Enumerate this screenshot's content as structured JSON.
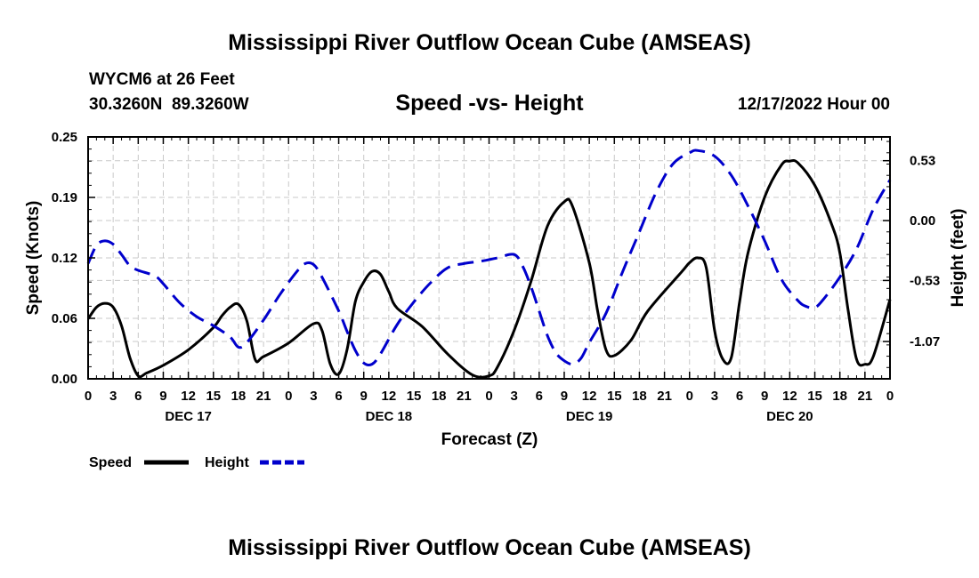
{
  "page": {
    "title": "Mississippi River Outflow Ocean Cube (AMSEAS)",
    "footer_title": "Mississippi River Outflow Ocean Cube (AMSEAS)"
  },
  "station": {
    "name": "WYCM6 at 26 Feet",
    "coords": "30.3260N  89.3260W",
    "timestamp": "12/17/2022 Hour 00"
  },
  "legend": {
    "speed_label": "Speed",
    "height_label": "Height"
  },
  "chart_data": {
    "type": "line",
    "title": "Speed -vs- Height",
    "xlabel": "Forecast (Z)",
    "ylabel": "Speed (Knots)",
    "y2label": "Height (feet)",
    "x_range": [
      0,
      96
    ],
    "ylim": [
      0,
      0.25
    ],
    "y2lim": [
      -1.4,
      0.74
    ],
    "y_ticks": [
      "0.00",
      "0.06",
      "0.12",
      "0.19",
      "0.25"
    ],
    "y_tick_values": [
      0,
      0.0625,
      0.125,
      0.1875,
      0.25
    ],
    "y2_ticks": [
      "-1.07",
      "-0.53",
      "0.00",
      "0.53"
    ],
    "y2_tick_values": [
      -1.07,
      -0.53,
      0.0,
      0.53
    ],
    "x_tick_labels": [
      "0",
      "3",
      "6",
      "9",
      "12",
      "15",
      "18",
      "21",
      "0",
      "3",
      "6",
      "9",
      "12",
      "15",
      "18",
      "21",
      "0",
      "3",
      "6",
      "9",
      "12",
      "15",
      "18",
      "21",
      "0",
      "3",
      "6",
      "9",
      "12",
      "15",
      "18",
      "21",
      "0"
    ],
    "day_labels": [
      {
        "label": "DEC 17",
        "hour": 12
      },
      {
        "label": "DEC 18",
        "hour": 36
      },
      {
        "label": "DEC 19",
        "hour": 60
      },
      {
        "label": "DEC 20",
        "hour": 84
      }
    ],
    "grid": true,
    "series": [
      {
        "name": "Speed",
        "axis": "left",
        "color": "#000000",
        "dashed": false,
        "points": [
          [
            0,
            0.062
          ],
          [
            1,
            0.074
          ],
          [
            2,
            0.078
          ],
          [
            3,
            0.074
          ],
          [
            4,
            0.055
          ],
          [
            5,
            0.022
          ],
          [
            6,
            0.003
          ],
          [
            7,
            0.006
          ],
          [
            9,
            0.014
          ],
          [
            12,
            0.03
          ],
          [
            15,
            0.053
          ],
          [
            16,
            0.065
          ],
          [
            17,
            0.074
          ],
          [
            18,
            0.077
          ],
          [
            19,
            0.06
          ],
          [
            20,
            0.02
          ],
          [
            21,
            0.023
          ],
          [
            24,
            0.037
          ],
          [
            27,
            0.057
          ],
          [
            28,
            0.05
          ],
          [
            29,
            0.015
          ],
          [
            30,
            0.005
          ],
          [
            31,
            0.03
          ],
          [
            32,
            0.08
          ],
          [
            33,
            0.1
          ],
          [
            34,
            0.111
          ],
          [
            35,
            0.108
          ],
          [
            36,
            0.09
          ],
          [
            37,
            0.073
          ],
          [
            40,
            0.054
          ],
          [
            43,
            0.026
          ],
          [
            46,
            0.004
          ],
          [
            48,
            0.003
          ],
          [
            49,
            0.012
          ],
          [
            51,
            0.05
          ],
          [
            53,
            0.1
          ],
          [
            55,
            0.158
          ],
          [
            57,
            0.183
          ],
          [
            58,
            0.178
          ],
          [
            60,
            0.12
          ],
          [
            61,
            0.07
          ],
          [
            62,
            0.03
          ],
          [
            63,
            0.024
          ],
          [
            65,
            0.04
          ],
          [
            67,
            0.07
          ],
          [
            71,
            0.11
          ],
          [
            72,
            0.12
          ],
          [
            73,
            0.125
          ],
          [
            74,
            0.115
          ],
          [
            75,
            0.05
          ],
          [
            76,
            0.02
          ],
          [
            77,
            0.022
          ],
          [
            78,
            0.08
          ],
          [
            79,
            0.13
          ],
          [
            81,
            0.188
          ],
          [
            83,
            0.221
          ],
          [
            84,
            0.225
          ],
          [
            85,
            0.223
          ],
          [
            87,
            0.2
          ],
          [
            89,
            0.16
          ],
          [
            90,
            0.13
          ],
          [
            91,
            0.07
          ],
          [
            92,
            0.02
          ],
          [
            93,
            0.015
          ],
          [
            94,
            0.023
          ],
          [
            96,
            0.082
          ]
        ]
      },
      {
        "name": "Height",
        "axis": "right",
        "color": "#0000cc",
        "dashed": true,
        "points": [
          [
            0,
            -0.38
          ],
          [
            1,
            -0.22
          ],
          [
            2,
            -0.18
          ],
          [
            3,
            -0.21
          ],
          [
            4,
            -0.3
          ],
          [
            5,
            -0.4
          ],
          [
            6,
            -0.44
          ],
          [
            8,
            -0.49
          ],
          [
            9,
            -0.56
          ],
          [
            11,
            -0.73
          ],
          [
            13,
            -0.85
          ],
          [
            15,
            -0.93
          ],
          [
            17,
            -1.03
          ],
          [
            18,
            -1.12
          ],
          [
            19,
            -1.08
          ],
          [
            21,
            -0.88
          ],
          [
            23,
            -0.65
          ],
          [
            25,
            -0.45
          ],
          [
            26,
            -0.38
          ],
          [
            27,
            -0.39
          ],
          [
            28,
            -0.5
          ],
          [
            30,
            -0.8
          ],
          [
            31,
            -0.98
          ],
          [
            32,
            -1.15
          ],
          [
            33,
            -1.26
          ],
          [
            34,
            -1.27
          ],
          [
            35,
            -1.18
          ],
          [
            37,
            -0.92
          ],
          [
            39,
            -0.72
          ],
          [
            41,
            -0.55
          ],
          [
            43,
            -0.42
          ],
          [
            45,
            -0.38
          ],
          [
            47,
            -0.36
          ],
          [
            49,
            -0.33
          ],
          [
            51,
            -0.3
          ],
          [
            52,
            -0.4
          ],
          [
            53,
            -0.58
          ],
          [
            54,
            -0.8
          ],
          [
            55,
            -1.02
          ],
          [
            56,
            -1.17
          ],
          [
            57,
            -1.24
          ],
          [
            58,
            -1.27
          ],
          [
            59,
            -1.22
          ],
          [
            60,
            -1.08
          ],
          [
            62,
            -0.82
          ],
          [
            64,
            -0.45
          ],
          [
            66,
            -0.1
          ],
          [
            68,
            0.25
          ],
          [
            70,
            0.5
          ],
          [
            72,
            0.6
          ],
          [
            73,
            0.62
          ],
          [
            75,
            0.57
          ],
          [
            77,
            0.4
          ],
          [
            79,
            0.13
          ],
          [
            81,
            -0.18
          ],
          [
            83,
            -0.52
          ],
          [
            85,
            -0.71
          ],
          [
            86,
            -0.76
          ],
          [
            87,
            -0.77
          ],
          [
            88,
            -0.7
          ],
          [
            90,
            -0.5
          ],
          [
            92,
            -0.25
          ],
          [
            94,
            0.1
          ],
          [
            96,
            0.36
          ]
        ]
      }
    ]
  }
}
